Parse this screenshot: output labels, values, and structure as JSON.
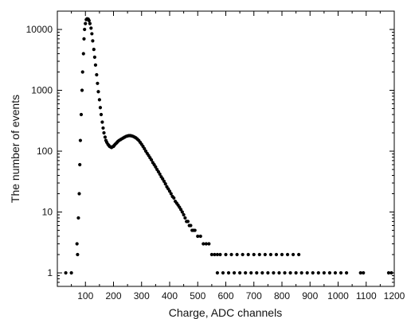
{
  "chart_data": {
    "type": "scatter",
    "title": "",
    "xlabel": "Charge, ADC channels",
    "ylabel": "The number of events",
    "x_axis": {
      "scale": "linear",
      "range": [
        0,
        1200
      ],
      "ticks": [
        100,
        200,
        300,
        400,
        500,
        600,
        700,
        800,
        900,
        1000,
        1100,
        1200
      ],
      "tick_labels": [
        "100",
        "200",
        "300",
        "400",
        "500",
        "600",
        "700",
        "800",
        "900",
        "1000",
        "1100",
        "1200"
      ]
    },
    "y_axis": {
      "scale": "log",
      "range": [
        0.6,
        20000
      ],
      "ticks": [
        1,
        10,
        100,
        1000,
        10000
      ],
      "tick_labels": [
        "1",
        "10",
        "100",
        "1000",
        "10000"
      ]
    },
    "grid": false,
    "legend": "none",
    "marker_color": "#000000",
    "series": [
      {
        "points": [
          [
            30,
            1
          ],
          [
            50,
            1
          ],
          [
            70,
            3
          ],
          [
            72,
            2
          ],
          [
            75,
            8
          ],
          [
            78,
            20
          ],
          [
            80,
            60
          ],
          [
            82,
            150
          ],
          [
            85,
            400
          ],
          [
            88,
            1000
          ],
          [
            90,
            2000
          ],
          [
            93,
            4000
          ],
          [
            95,
            7000
          ],
          [
            97,
            10000
          ],
          [
            100,
            12500
          ],
          [
            103,
            14500
          ],
          [
            106,
            15000
          ],
          [
            110,
            14800
          ],
          [
            113,
            14000
          ],
          [
            116,
            12500
          ],
          [
            120,
            10500
          ],
          [
            123,
            8500
          ],
          [
            126,
            6500
          ],
          [
            130,
            4700
          ],
          [
            133,
            3500
          ],
          [
            136,
            2600
          ],
          [
            140,
            1800
          ],
          [
            143,
            1300
          ],
          [
            146,
            950
          ],
          [
            150,
            700
          ],
          [
            153,
            520
          ],
          [
            156,
            400
          ],
          [
            160,
            300
          ],
          [
            163,
            240
          ],
          [
            166,
            200
          ],
          [
            170,
            170
          ],
          [
            173,
            150
          ],
          [
            176,
            140
          ],
          [
            180,
            130
          ],
          [
            183,
            125
          ],
          [
            186,
            120
          ],
          [
            190,
            117
          ],
          [
            193,
            115
          ],
          [
            196,
            118
          ],
          [
            200,
            120
          ],
          [
            203,
            125
          ],
          [
            206,
            130
          ],
          [
            210,
            135
          ],
          [
            213,
            140
          ],
          [
            216,
            145
          ],
          [
            220,
            150
          ],
          [
            225,
            155
          ],
          [
            230,
            160
          ],
          [
            235,
            165
          ],
          [
            240,
            170
          ],
          [
            245,
            175
          ],
          [
            250,
            178
          ],
          [
            255,
            180
          ],
          [
            260,
            180
          ],
          [
            265,
            178
          ],
          [
            270,
            175
          ],
          [
            275,
            170
          ],
          [
            280,
            165
          ],
          [
            285,
            158
          ],
          [
            290,
            150
          ],
          [
            295,
            140
          ],
          [
            300,
            130
          ],
          [
            305,
            120
          ],
          [
            310,
            110
          ],
          [
            315,
            100
          ],
          [
            320,
            92
          ],
          [
            325,
            85
          ],
          [
            330,
            78
          ],
          [
            335,
            72
          ],
          [
            340,
            65
          ],
          [
            345,
            60
          ],
          [
            350,
            55
          ],
          [
            355,
            50
          ],
          [
            360,
            46
          ],
          [
            365,
            42
          ],
          [
            370,
            38
          ],
          [
            375,
            35
          ],
          [
            380,
            32
          ],
          [
            385,
            29
          ],
          [
            390,
            26
          ],
          [
            395,
            24
          ],
          [
            400,
            22
          ],
          [
            405,
            20
          ],
          [
            410,
            18
          ],
          [
            415,
            17
          ],
          [
            420,
            15
          ],
          [
            425,
            14
          ],
          [
            430,
            13
          ],
          [
            435,
            12
          ],
          [
            440,
            11
          ],
          [
            445,
            10
          ],
          [
            450,
            9
          ],
          [
            455,
            8
          ],
          [
            460,
            7
          ],
          [
            465,
            7
          ],
          [
            470,
            6
          ],
          [
            475,
            6
          ],
          [
            480,
            5
          ],
          [
            485,
            5
          ],
          [
            490,
            5
          ],
          [
            500,
            4
          ],
          [
            510,
            4
          ],
          [
            520,
            3
          ],
          [
            530,
            3
          ],
          [
            540,
            3
          ],
          [
            550,
            2
          ],
          [
            560,
            2
          ],
          [
            570,
            2
          ],
          [
            580,
            2
          ],
          [
            600,
            2
          ],
          [
            620,
            2
          ],
          [
            640,
            2
          ],
          [
            660,
            2
          ],
          [
            680,
            2
          ],
          [
            700,
            2
          ],
          [
            720,
            2
          ],
          [
            740,
            2
          ],
          [
            760,
            2
          ],
          [
            780,
            2
          ],
          [
            800,
            2
          ],
          [
            820,
            2
          ],
          [
            840,
            2
          ],
          [
            860,
            2
          ],
          [
            570,
            1
          ],
          [
            590,
            1
          ],
          [
            610,
            1
          ],
          [
            630,
            1
          ],
          [
            650,
            1
          ],
          [
            670,
            1
          ],
          [
            690,
            1
          ],
          [
            710,
            1
          ],
          [
            730,
            1
          ],
          [
            750,
            1
          ],
          [
            770,
            1
          ],
          [
            790,
            1
          ],
          [
            810,
            1
          ],
          [
            830,
            1
          ],
          [
            850,
            1
          ],
          [
            870,
            1
          ],
          [
            890,
            1
          ],
          [
            910,
            1
          ],
          [
            930,
            1
          ],
          [
            950,
            1
          ],
          [
            970,
            1
          ],
          [
            990,
            1
          ],
          [
            1010,
            1
          ],
          [
            1030,
            1
          ],
          [
            1080,
            1
          ],
          [
            1090,
            1
          ],
          [
            1180,
            1
          ],
          [
            1190,
            1
          ]
        ]
      }
    ]
  }
}
